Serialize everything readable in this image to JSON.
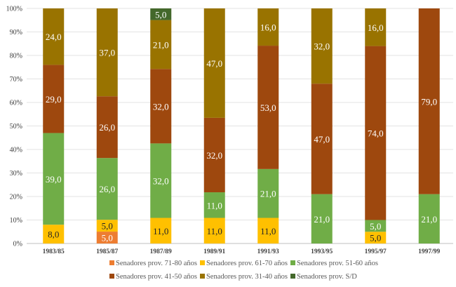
{
  "chart_data": {
    "type": "bar",
    "stacked": "percent",
    "categories": [
      "1983/85",
      "1985/87",
      "1987/89",
      "1989/91",
      "1991/93",
      "1993/95",
      "1995/97",
      "1997/99"
    ],
    "series": [
      {
        "name": "Senadores prov. 71-80 años",
        "color": "#ED7D31",
        "label_color": "#ffffff",
        "values": [
          0,
          5,
          0,
          0,
          0,
          0,
          0,
          0
        ]
      },
      {
        "name": "Senadores prov. 61-70 años",
        "color": "#FFC000",
        "label_color": "#262626",
        "values": [
          8,
          5,
          11,
          11,
          11,
          0,
          5,
          0
        ]
      },
      {
        "name": "Senadores prov. 51-60 años",
        "color": "#70AD47",
        "label_color": "#ffffff",
        "values": [
          39,
          26,
          32,
          11,
          21,
          21,
          5,
          21
        ]
      },
      {
        "name": "Senadores prov. 41-50 años",
        "color": "#9E480E",
        "label_color": "#ffffff",
        "values": [
          29,
          26,
          32,
          32,
          53,
          47,
          74,
          79
        ]
      },
      {
        "name": "Senadores prov. 31-40 años",
        "color": "#997300",
        "label_color": "#ffffff",
        "values": [
          24,
          37,
          21,
          47,
          16,
          32,
          16,
          0
        ]
      },
      {
        "name": "Senadores prov. S/D",
        "color": "#43682B",
        "label_color": "#ffffff",
        "values": [
          0,
          0,
          5,
          0,
          0,
          0,
          0,
          0
        ]
      }
    ],
    "value_format": "decimal comma, 1 place",
    "yticks": [
      "0%",
      "10%",
      "20%",
      "30%",
      "40%",
      "50%",
      "60%",
      "70%",
      "80%",
      "90%",
      "100%"
    ],
    "ylim": [
      0,
      100
    ],
    "grid": true,
    "legend": "bottom",
    "title": "",
    "xlabel": "",
    "ylabel": ""
  }
}
